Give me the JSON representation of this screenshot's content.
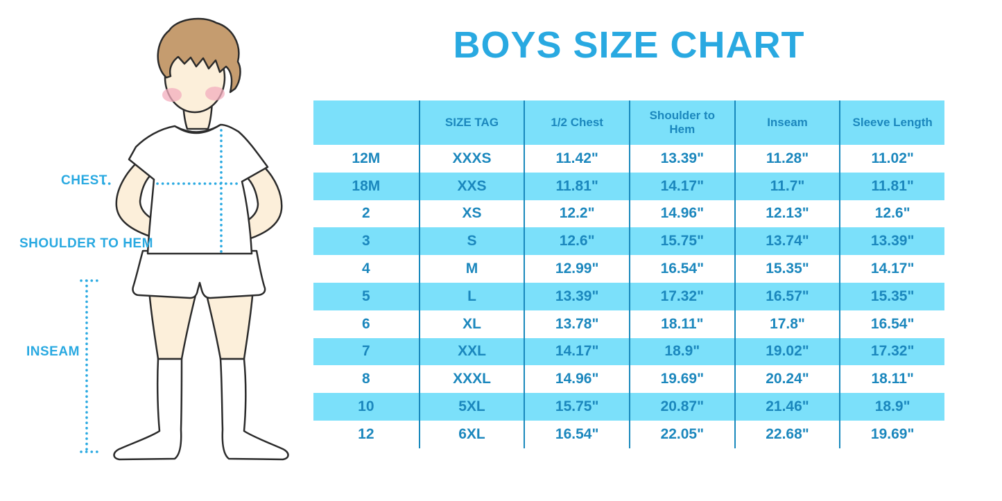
{
  "chart_data": {
    "type": "table",
    "title": "BOYS SIZE CHART",
    "columns": [
      "",
      "SIZE TAG",
      "1/2 Chest",
      "Shoulder to Hem",
      "Inseam",
      "Sleeve Length"
    ],
    "rows": [
      [
        "12M",
        "XXXS",
        "11.42\"",
        "13.39\"",
        "11.28\"",
        "11.02\""
      ],
      [
        "18M",
        "XXS",
        "11.81\"",
        "14.17\"",
        "11.7\"",
        "11.81\""
      ],
      [
        "2",
        "XS",
        "12.2\"",
        "14.96\"",
        "12.13\"",
        "12.6\""
      ],
      [
        "3",
        "S",
        "12.6\"",
        "15.75\"",
        "13.74\"",
        "13.39\""
      ],
      [
        "4",
        "M",
        "12.99\"",
        "16.54\"",
        "15.35\"",
        "14.17\""
      ],
      [
        "5",
        "L",
        "13.39\"",
        "17.32\"",
        "16.57\"",
        "15.35\""
      ],
      [
        "6",
        "XL",
        "13.78\"",
        "18.11\"",
        "17.8\"",
        "16.54\""
      ],
      [
        "7",
        "XXL",
        "14.17\"",
        "18.9\"",
        "19.02\"",
        "17.32\""
      ],
      [
        "8",
        "XXXL",
        "14.96\"",
        "19.69\"",
        "20.24\"",
        "18.11\""
      ],
      [
        "10",
        "5XL",
        "15.75\"",
        "20.87\"",
        "21.46\"",
        "18.9\""
      ],
      [
        "12",
        "6XL",
        "16.54\"",
        "22.05\"",
        "22.68\"",
        "19.69\""
      ]
    ],
    "layout": {
      "grid": "alternating row bands",
      "units": "inches"
    }
  },
  "figure_labels": {
    "chest": "CHEST",
    "shoulder_to_hem": "SHOULDER TO HEM",
    "inseam": "INSEAM"
  },
  "colors": {
    "title_blue": "#29A9E1",
    "row_band_bg": "#7BE0FA",
    "table_text": "#1B87BD",
    "divider": "#1888BC",
    "dotted_line": "#29A9E1",
    "hair": "#C59C6F",
    "skin": "#FCEFDA",
    "blush": "#F3AEBE",
    "outline": "#2B2B2B"
  }
}
